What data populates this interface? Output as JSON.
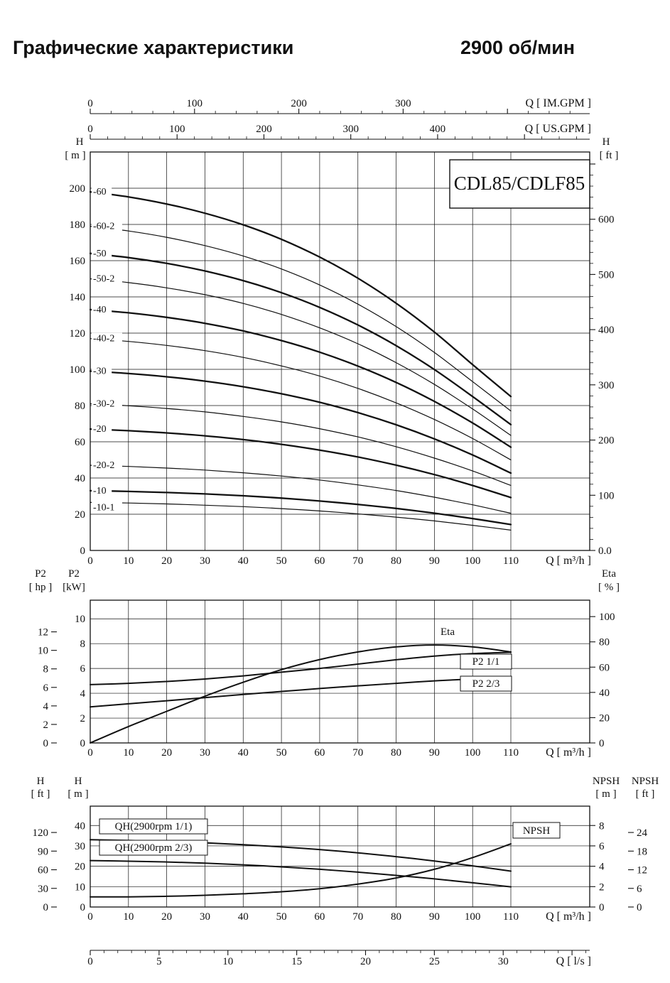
{
  "page": {
    "title": "Графические характеристики",
    "rpm": "2900 об/мин"
  },
  "chart_data": [
    {
      "id": "qh-main",
      "type": "line",
      "title": "CDL85/CDLF85",
      "xlabel": "Q [ m³/h ]",
      "xlabel_top_im": "Q [ IM.GPM ]",
      "xlabel_top_us": "Q [ US.GPM ]",
      "ylabel_left": [
        "H",
        "[ m ]"
      ],
      "ylabel_right": [
        "H",
        "[ ft ]"
      ],
      "xlim_m3h": [
        0,
        110
      ],
      "ylim_m": [
        0,
        220
      ],
      "grid": true,
      "legend_position": "curve-start-labels",
      "x_ticks_m3h": [
        0,
        10,
        20,
        30,
        40,
        50,
        60,
        70,
        80,
        90,
        100,
        110
      ],
      "y_ticks_m": [
        0,
        20,
        40,
        60,
        80,
        100,
        120,
        140,
        160,
        180,
        200
      ],
      "y_ticks_ft": [
        "0.0",
        100,
        200,
        300,
        400,
        500,
        600
      ],
      "im_gpm_ticks": [
        0,
        100,
        200,
        300
      ],
      "us_gpm_ticks": [
        0,
        100,
        200,
        300,
        400
      ],
      "x": [
        0,
        10,
        20,
        30,
        40,
        50,
        60,
        70,
        80,
        90,
        100,
        110
      ],
      "series": [
        {
          "name": "-60",
          "trim": false,
          "values": [
            198,
            195.2,
            191.3,
            186.2,
            179.8,
            171.8,
            162,
            150.3,
            136.5,
            120.6,
            102.6,
            85
          ]
        },
        {
          "name": "-60-2",
          "trim": true,
          "values": [
            179,
            176.4,
            172.9,
            168.3,
            162.6,
            155.4,
            146.6,
            136,
            123.6,
            109.3,
            93.2,
            77
          ]
        },
        {
          "name": "-50",
          "trim": false,
          "values": [
            164,
            161.7,
            158.5,
            154.3,
            149,
            142.3,
            134.2,
            124.5,
            113.1,
            99.9,
            85,
            69.5
          ]
        },
        {
          "name": "-50-2",
          "trim": true,
          "values": [
            150,
            147.9,
            145,
            141.2,
            136.4,
            130.3,
            122.9,
            114.1,
            103.7,
            91.7,
            78.1,
            63.5
          ]
        },
        {
          "name": "-40",
          "trim": false,
          "values": [
            133,
            131.2,
            128.7,
            125.4,
            121.2,
            115.9,
            109.5,
            101.8,
            92.8,
            82.3,
            70.4,
            57
          ]
        },
        {
          "name": "-40-2",
          "trim": true,
          "values": [
            117,
            115.4,
            113.2,
            110.3,
            106.6,
            101.9,
            96.3,
            89.5,
            81.5,
            72.3,
            61.8,
            50
          ]
        },
        {
          "name": "-30",
          "trim": false,
          "values": [
            99,
            97.7,
            95.9,
            93.5,
            90.4,
            86.5,
            81.8,
            76.1,
            69.4,
            61.6,
            52.7,
            42.7
          ]
        },
        {
          "name": "-30-2",
          "trim": true,
          "values": [
            81,
            79.9,
            78.4,
            76.5,
            74,
            71,
            67.2,
            62.7,
            57.3,
            51,
            43.9,
            35.9
          ]
        },
        {
          "name": "-20",
          "trim": false,
          "values": [
            67,
            66.1,
            64.9,
            63.3,
            61.2,
            58.6,
            55.4,
            51.6,
            47.1,
            41.9,
            35.9,
            29.2
          ]
        },
        {
          "name": "-20-2",
          "trim": true,
          "values": [
            47,
            46.4,
            45.5,
            44.4,
            42.9,
            41.1,
            38.9,
            36.2,
            33.1,
            29.4,
            25.2,
            20.5
          ]
        },
        {
          "name": "-10",
          "trim": false,
          "values": [
            33,
            32.6,
            32,
            31.2,
            30.2,
            28.9,
            27.3,
            25.4,
            23.2,
            20.6,
            17.6,
            14.3
          ]
        },
        {
          "name": "-10-1",
          "trim": true,
          "values": [
            26.5,
            26.2,
            25.7,
            25,
            24.2,
            23.1,
            21.8,
            20.2,
            18.4,
            16.3,
            13.9,
            11.2
          ]
        }
      ]
    },
    {
      "id": "power-efficiency",
      "type": "line",
      "xlabel": "Q [ m³/h ]",
      "ylabel_left_outer": [
        "P2",
        "[ hp ]"
      ],
      "ylabel_left": [
        "P2",
        "[kW]"
      ],
      "ylabel_right": [
        "Eta",
        "[ % ]"
      ],
      "ylim_kw": [
        0,
        11.5
      ],
      "ylim_eta": [
        0,
        113
      ],
      "grid": true,
      "x_ticks_m3h": [
        0,
        10,
        20,
        30,
        40,
        50,
        60,
        70,
        80,
        90,
        100,
        110
      ],
      "y_ticks_kw": [
        0,
        2,
        4,
        6,
        8,
        10
      ],
      "y_ticks_hp": [
        0,
        2,
        4,
        6,
        8,
        10,
        12
      ],
      "y_ticks_eta": [
        0,
        20,
        40,
        60,
        80,
        100
      ],
      "x": [
        0,
        10,
        20,
        30,
        40,
        50,
        60,
        70,
        80,
        90,
        100,
        110
      ],
      "series": [
        {
          "name": "Eta",
          "axis": "eta",
          "label": "Eta",
          "values": [
            0,
            13,
            25,
            37,
            48,
            58,
            66,
            72,
            76,
            77.5,
            76,
            72
          ]
        },
        {
          "name": "P2 1/1",
          "axis": "kw",
          "label": "P2 1/1",
          "values": [
            4.7,
            4.8,
            4.95,
            5.15,
            5.4,
            5.7,
            6,
            6.35,
            6.7,
            7,
            7.2,
            7.3
          ]
        },
        {
          "name": "P2 2/3",
          "axis": "kw",
          "label": "P2 2/3",
          "values": [
            2.9,
            3.15,
            3.4,
            3.65,
            3.9,
            4.15,
            4.38,
            4.6,
            4.8,
            5,
            5.15,
            5.3
          ]
        }
      ]
    },
    {
      "id": "qh-single-stage-npsh",
      "type": "line",
      "xlabel": "Q [ m³/h ]",
      "xlabel_bottom_ls": "Q [ l/s ]",
      "ylabel_left_outer": [
        "H",
        "[ ft ]"
      ],
      "ylabel_left": [
        "H",
        "[ m ]"
      ],
      "ylabel_right": [
        "NPSH",
        "[ m ]"
      ],
      "ylabel_right_outer": [
        "NPSH",
        "[ ft ]"
      ],
      "ylim_m": [
        0,
        49.5
      ],
      "ylim_npsh_m": [
        0,
        9.9
      ],
      "grid": true,
      "x_ticks_m3h": [
        0,
        10,
        20,
        30,
        40,
        50,
        60,
        70,
        80,
        90,
        100,
        110
      ],
      "x_ticks_ls": [
        0,
        5,
        10,
        15,
        20,
        25,
        30
      ],
      "y_ticks_m": [
        0,
        10,
        20,
        30,
        40
      ],
      "y_ticks_ft": [
        0,
        30,
        60,
        90,
        120
      ],
      "y_ticks_npsh_m": [
        0,
        2,
        4,
        6,
        8
      ],
      "y_ticks_npsh_ft": [
        0,
        6,
        12,
        18,
        24
      ],
      "x": [
        0,
        10,
        20,
        30,
        40,
        50,
        60,
        70,
        80,
        90,
        100,
        110
      ],
      "series": [
        {
          "name": "QH(2900rpm 1/1)",
          "axis": "m",
          "values": [
            33,
            32.7,
            32.2,
            31.5,
            30.6,
            29.5,
            28.2,
            26.6,
            24.7,
            22.6,
            20.2,
            17.6
          ]
        },
        {
          "name": "QH(2900rpm 2/3)",
          "axis": "m",
          "values": [
            22.8,
            22.5,
            22.1,
            21.5,
            20.7,
            19.7,
            18.5,
            17.1,
            15.5,
            13.8,
            11.9,
            9.9
          ]
        },
        {
          "name": "NPSH",
          "axis": "npsh_m",
          "values": [
            1,
            1,
            1.05,
            1.15,
            1.3,
            1.5,
            1.8,
            2.25,
            2.85,
            3.7,
            4.85,
            6.2
          ]
        }
      ]
    }
  ]
}
